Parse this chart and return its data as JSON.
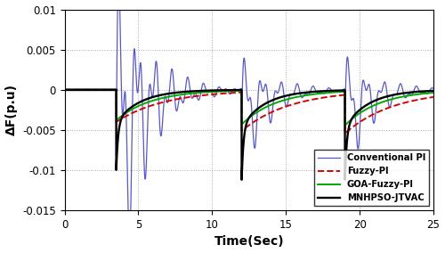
{
  "xlim": [
    0,
    25
  ],
  "ylim": [
    -0.015,
    0.01
  ],
  "xlabel": "Time(Sec)",
  "ylabel": "ΔF(p.u)",
  "yticks": [
    -0.015,
    -0.01,
    -0.005,
    0,
    0.005,
    0.01
  ],
  "xticks": [
    0,
    5,
    10,
    15,
    20,
    25
  ],
  "grid_color": "#aaaaaa",
  "colors": {
    "conventional_pi": "#5555dd",
    "fuzzy_pi": "#dd0000",
    "goa_fuzzy_pi": "#00aa00",
    "mnhpso": "#000000"
  },
  "legend_labels": [
    "Conventional PI",
    "Fuzzy-PI",
    "GOA-Fuzzy-PI",
    "MNHPSO-JTVAC"
  ],
  "event1": 3.5,
  "event2": 12.0,
  "event3": 19.0
}
